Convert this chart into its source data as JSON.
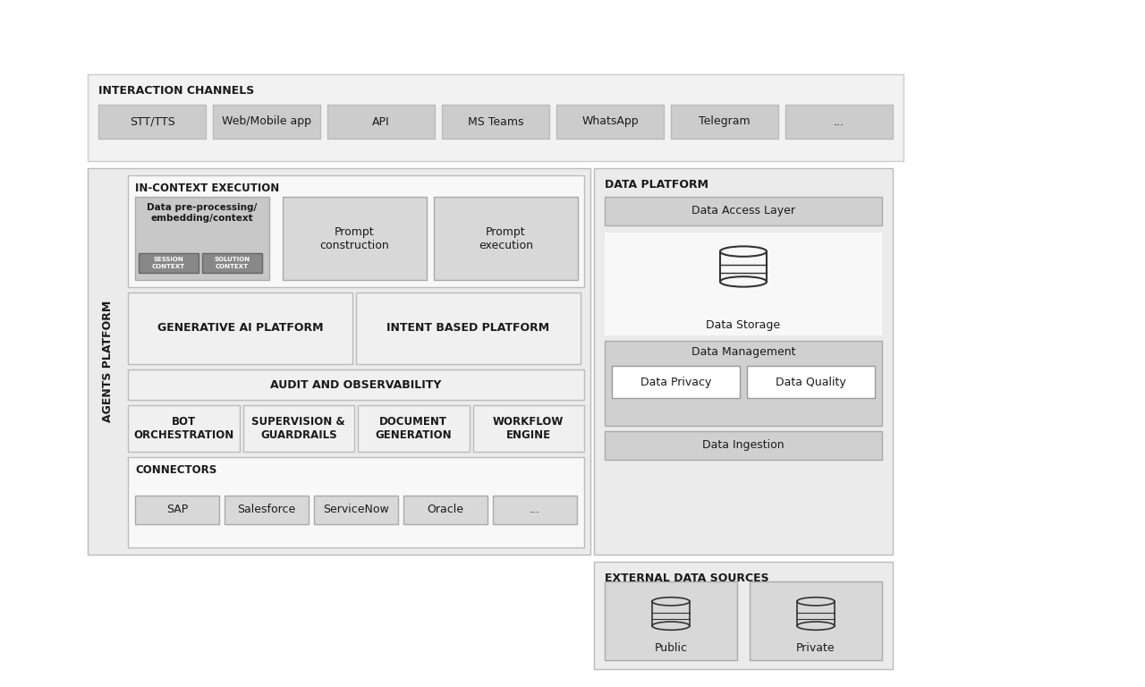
{
  "bg_outer": "#f2f2f2",
  "bg_white": "#ffffff",
  "bg_light": "#f0f0f0",
  "bg_medium": "#d8d8d8",
  "bg_dark": "#cccccc",
  "text_dark": "#1a1a1a",
  "interaction_channels": {
    "label": "INTERACTION CHANNELS",
    "items": [
      "STT/TTS",
      "Web/Mobile app",
      "API",
      "MS Teams",
      "WhatsApp",
      "Telegram",
      "..."
    ]
  },
  "agents_platform_label": "AGENTS PLATFORM",
  "in_context_label": "IN-CONTEXT EXECUTION",
  "in_context_boxes": [
    "Data pre-processing/\nembedding/context",
    "Prompt\nconstruction",
    "Prompt\nexecution"
  ],
  "session_label": "SESSION\nCONTEXT",
  "solution_label": "SOLUTION\nCONTEXT",
  "ai_platforms": [
    "GENERATIVE AI PLATFORM",
    "INTENT BASED PLATFORM"
  ],
  "audit_label": "AUDIT AND OBSERVABILITY",
  "bot_row": [
    "BOT\nORCHESTRATION",
    "SUPERVISION &\nGUARDRAILS",
    "DOCUMENT\nGENERATION",
    "WORKFLOW\nENGINE"
  ],
  "connectors_label": "CONNECTORS",
  "connectors_items": [
    "SAP",
    "Salesforce",
    "ServiceNow",
    "Oracle",
    "..."
  ],
  "data_platform_label": "DATA PLATFORM",
  "data_access_layer": "Data Access Layer",
  "data_storage": "Data Storage",
  "data_management": "Data Management",
  "data_privacy": "Data Privacy",
  "data_quality": "Data Quality",
  "data_ingestion": "Data Ingestion",
  "external_data_label": "EXTERNAL DATA SOURCES",
  "external_items": [
    "Public",
    "Private"
  ]
}
